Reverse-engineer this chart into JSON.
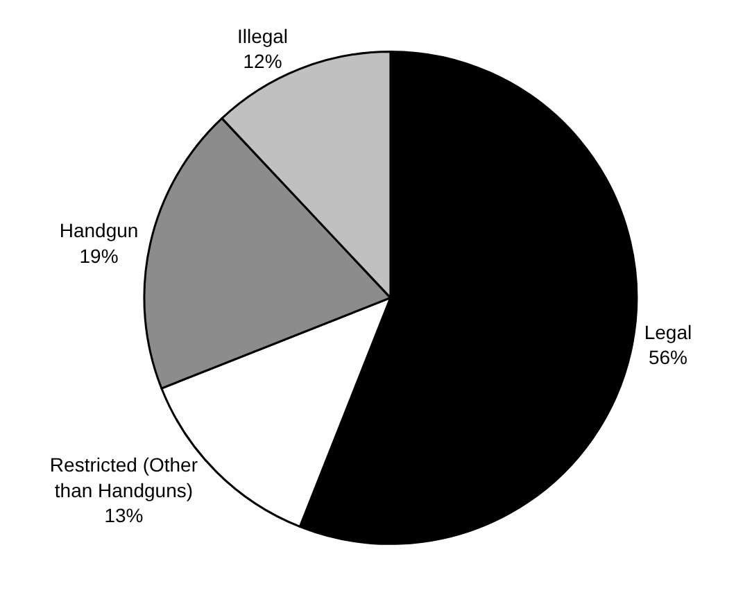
{
  "chart_data": {
    "type": "pie",
    "categories": [
      "Legal",
      "Restricted (Other than Handguns)",
      "Handgun",
      "Illegal"
    ],
    "values": [
      56,
      13,
      19,
      12
    ],
    "value_labels": [
      "56%",
      "13%",
      "19%",
      "12%"
    ],
    "colors": [
      "#000000",
      "#ffffff",
      "#8c8c8c",
      "#c0c0c0"
    ],
    "legend": false
  }
}
